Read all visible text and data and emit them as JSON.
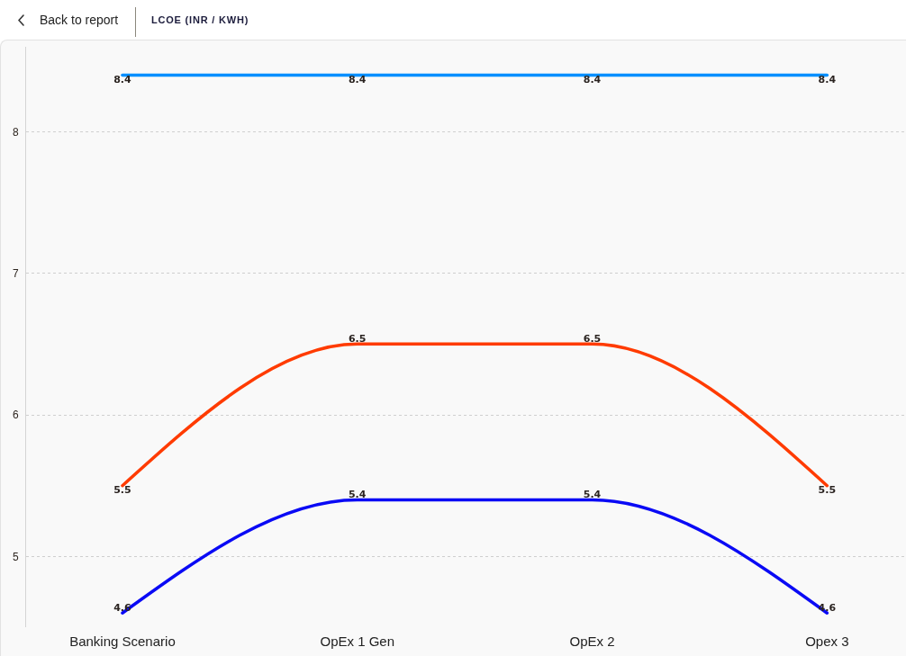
{
  "chart_data": {
    "type": "line",
    "title": "LCOE (INR / KWH)",
    "annotations": [
      "Back to report"
    ],
    "categories": [
      "Banking Scenario",
      "OpEx 1 Gen",
      "OpEx 2",
      "Opex 3"
    ],
    "series": [
      {
        "color": "#008fff",
        "values": [
          8.4,
          8.4,
          8.4,
          8.4
        ]
      },
      {
        "color": "#ff3b00",
        "values": [
          5.5,
          6.5,
          6.5,
          5.5
        ]
      },
      {
        "color": "#0a0af5",
        "values": [
          4.6,
          5.4,
          5.4,
          4.6
        ]
      }
    ],
    "ylim": [
      4.5,
      8.6
    ],
    "yticks": [
      5,
      6,
      7,
      8
    ],
    "grid": "y",
    "data_labels": true,
    "marker": "none",
    "line_style": "solid"
  }
}
